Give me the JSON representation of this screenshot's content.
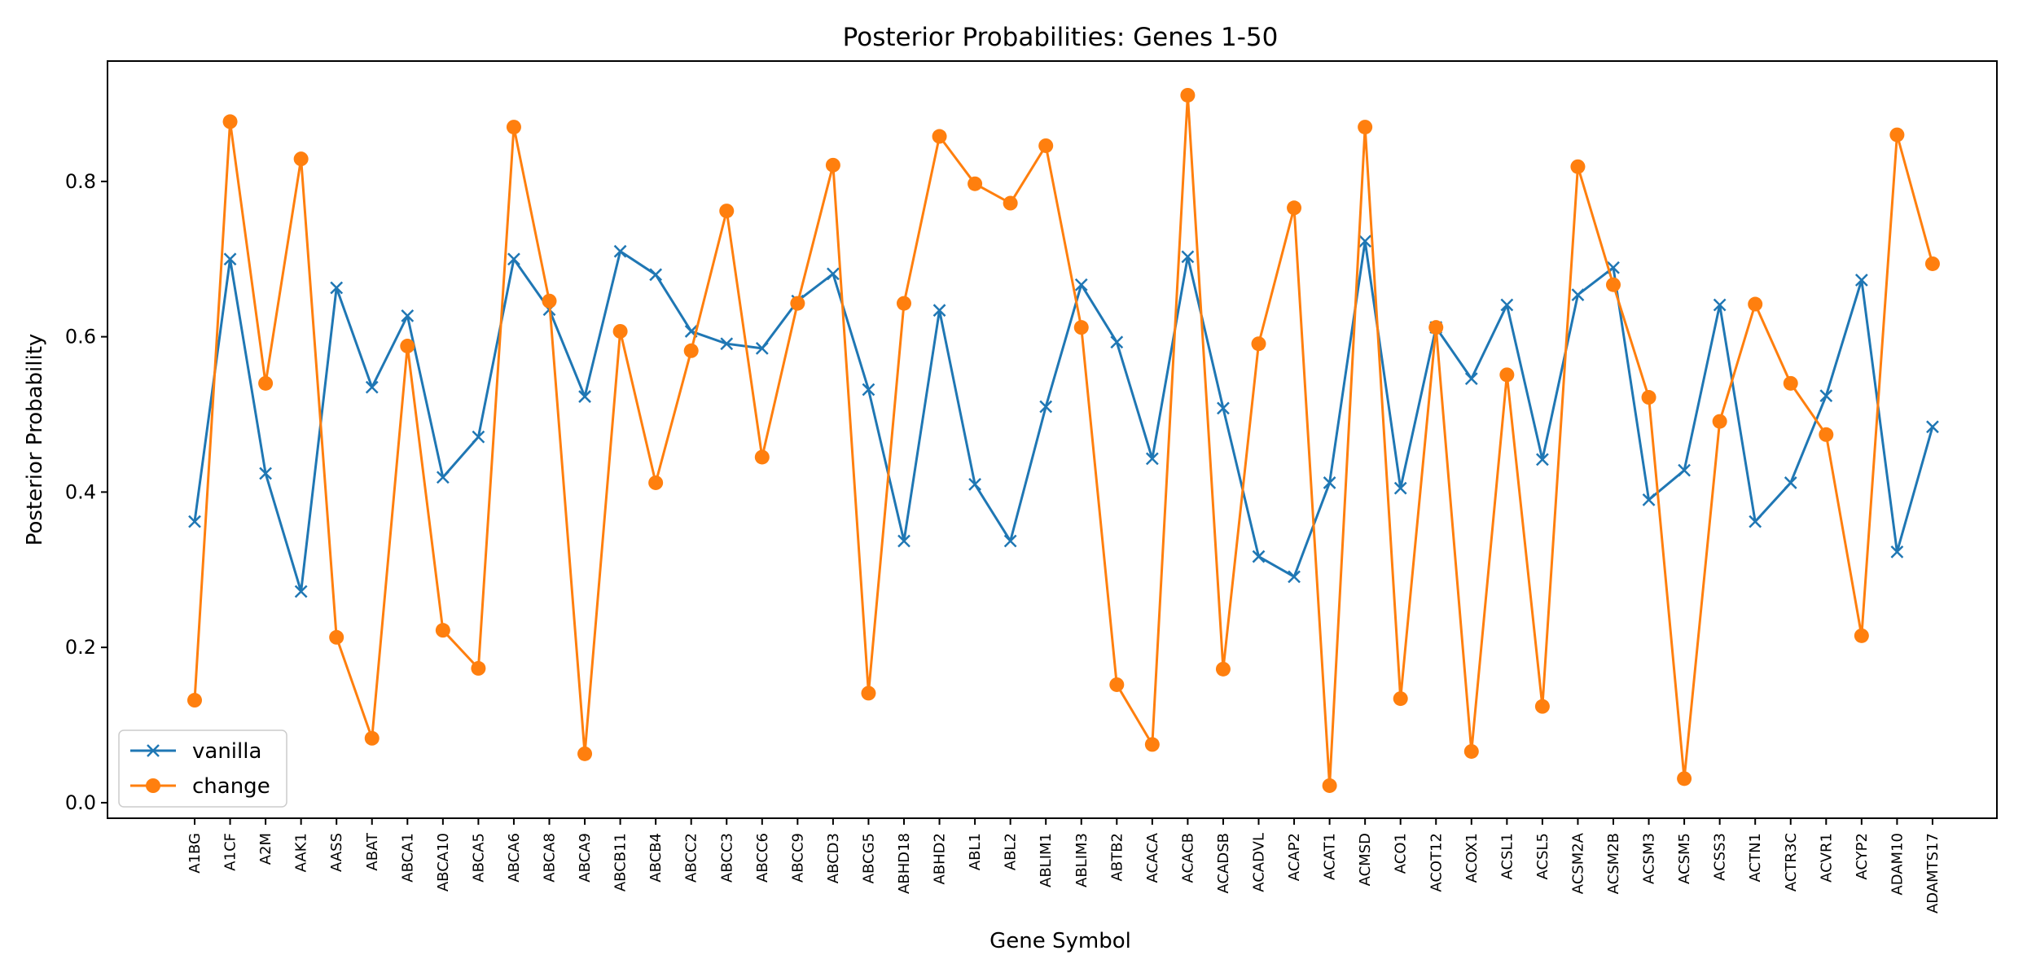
{
  "chart_data": {
    "type": "line",
    "title": "Posterior Probabilities: Genes 1-50",
    "xlabel": "Gene Symbol",
    "ylabel": "Posterior Probability",
    "ylim": [
      -0.02,
      0.955
    ],
    "yticks": [
      0.0,
      0.2,
      0.4,
      0.6,
      0.8
    ],
    "ytick_labels": [
      "0.0",
      "0.2",
      "0.4",
      "0.6",
      "0.8"
    ],
    "grid": false,
    "legend_position": "lower-left",
    "categories": [
      "A1BG",
      "A1CF",
      "A2M",
      "AAK1",
      "AASS",
      "ABAT",
      "ABCA1",
      "ABCA10",
      "ABCA5",
      "ABCA6",
      "ABCA8",
      "ABCA9",
      "ABCB11",
      "ABCB4",
      "ABCC2",
      "ABCC3",
      "ABCC6",
      "ABCC9",
      "ABCD3",
      "ABCG5",
      "ABHD18",
      "ABHD2",
      "ABL1",
      "ABL2",
      "ABLIM1",
      "ABLIM3",
      "ABTB2",
      "ACACA",
      "ACACB",
      "ACADSB",
      "ACADVL",
      "ACAP2",
      "ACAT1",
      "ACMSD",
      "ACO1",
      "ACOT12",
      "ACOX1",
      "ACSL1",
      "ACSL5",
      "ACSM2A",
      "ACSM2B",
      "ACSM3",
      "ACSM5",
      "ACSS3",
      "ACTN1",
      "ACTR3C",
      "ACVR1",
      "ACYP2",
      "ADAM10",
      "ADAMTS17"
    ],
    "series": [
      {
        "name": "vanilla",
        "color": "#1f77b4",
        "marker": "x",
        "values": [
          0.362,
          0.7,
          0.424,
          0.272,
          0.663,
          0.535,
          0.627,
          0.419,
          0.471,
          0.7,
          0.635,
          0.523,
          0.71,
          0.68,
          0.607,
          0.591,
          0.585,
          0.646,
          0.681,
          0.532,
          0.337,
          0.634,
          0.41,
          0.337,
          0.51,
          0.667,
          0.593,
          0.443,
          0.703,
          0.508,
          0.317,
          0.291,
          0.412,
          0.723,
          0.405,
          0.612,
          0.546,
          0.641,
          0.442,
          0.654,
          0.689,
          0.39,
          0.428,
          0.641,
          0.362,
          0.412,
          0.524,
          0.673,
          0.323,
          0.484
        ]
      },
      {
        "name": "change",
        "color": "#ff7f0e",
        "marker": "o",
        "values": [
          0.132,
          0.877,
          0.54,
          0.829,
          0.213,
          0.083,
          0.588,
          0.222,
          0.173,
          0.87,
          0.646,
          0.063,
          0.607,
          0.412,
          0.582,
          0.762,
          0.445,
          0.643,
          0.821,
          0.141,
          0.643,
          0.858,
          0.797,
          0.772,
          0.846,
          0.612,
          0.152,
          0.075,
          0.911,
          0.172,
          0.591,
          0.766,
          0.022,
          0.87,
          0.134,
          0.612,
          0.066,
          0.551,
          0.124,
          0.819,
          0.667,
          0.522,
          0.031,
          0.491,
          0.642,
          0.54,
          0.474,
          0.215,
          0.86,
          0.694
        ]
      }
    ]
  }
}
